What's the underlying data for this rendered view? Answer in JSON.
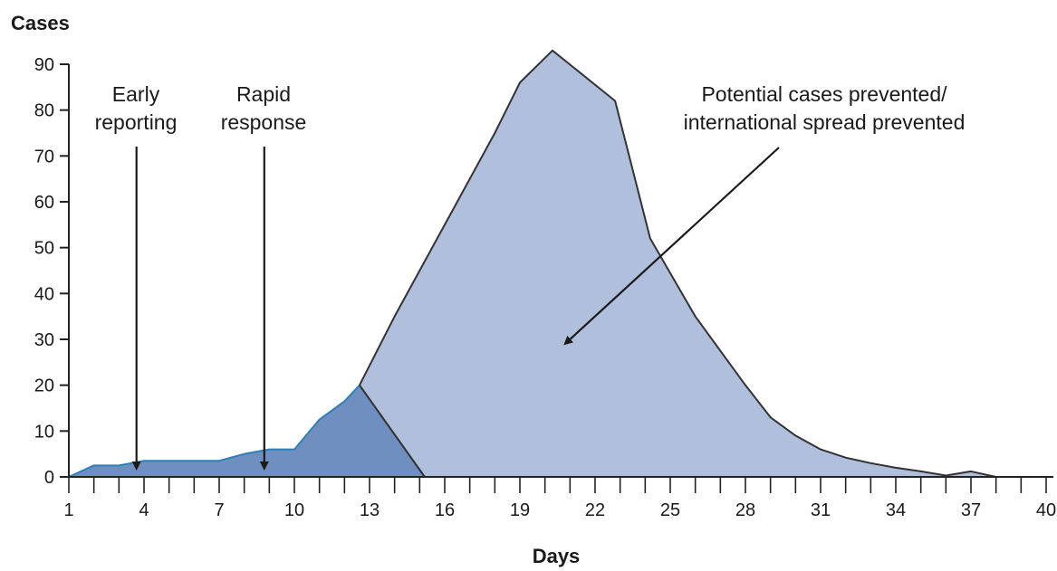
{
  "chart_data": {
    "type": "area",
    "title": "",
    "xlabel": "Days",
    "ylabel": "Cases",
    "xlim": [
      1,
      40
    ],
    "ylim": [
      0,
      90
    ],
    "xticks": [
      1,
      4,
      7,
      10,
      13,
      16,
      19,
      22,
      25,
      28,
      31,
      34,
      37,
      40
    ],
    "yticks": [
      0,
      10,
      20,
      30,
      40,
      50,
      60,
      70,
      80,
      90
    ],
    "grid": false,
    "colors": {
      "prevented_fill": "#b0bfdc",
      "actual_fill": "#6f8fc1",
      "actual_line": "#2f7fb8",
      "outline": "#333333",
      "axis": "#222222"
    },
    "series": [
      {
        "x": [
          1,
          2,
          3,
          4,
          5,
          6,
          7,
          8,
          9,
          10,
          11,
          12,
          12.6,
          15.2
        ],
        "y": [
          0,
          2.5,
          2.5,
          3.5,
          3.5,
          3.5,
          3.5,
          5,
          6,
          6,
          12.5,
          16.5,
          20,
          0
        ]
      },
      {
        "x": [
          12.6,
          14,
          16,
          18,
          19,
          20.3,
          22.8,
          24.2,
          26,
          28,
          29,
          30,
          31,
          32,
          33,
          34,
          35,
          36,
          37,
          38
        ],
        "y": [
          20,
          35,
          55,
          75,
          86,
          93,
          82,
          52,
          35,
          20,
          13,
          9,
          6,
          4.2,
          3,
          2,
          1.2,
          0.3,
          1.2,
          0
        ]
      }
    ],
    "annotations": [
      {
        "lines": [
          "Early",
          "reporting"
        ],
        "x": 3.7
      },
      {
        "lines": [
          "Rapid",
          "response"
        ],
        "x": 8.8
      },
      {
        "lines": [
          "Potential cases prevented/",
          "international spread prevented"
        ],
        "target": [
          20.8,
          29
        ]
      }
    ]
  }
}
